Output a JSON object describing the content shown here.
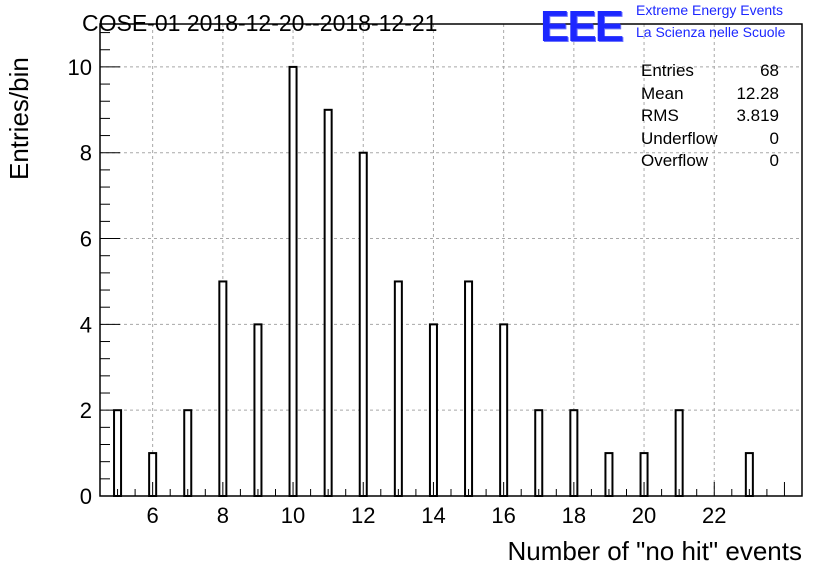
{
  "header": {
    "title": "COSE-01 2018-12-20--2018-12-21",
    "logo_mark": "EEE",
    "logo_line1": "Extreme Energy Events",
    "logo_line2": "La Scienza nelle Scuole"
  },
  "stats": [
    {
      "label": "Entries",
      "value": "68"
    },
    {
      "label": "Mean",
      "value": "12.28"
    },
    {
      "label": "RMS",
      "value": "3.819"
    },
    {
      "label": "Underflow",
      "value": "0"
    },
    {
      "label": "Overflow",
      "value": "0"
    }
  ],
  "chart_data": {
    "type": "bar",
    "title": "COSE-01 2018-12-20--2018-12-21",
    "xlabel": "Number of \"no hit\" events",
    "ylabel": "Entries/bin",
    "xlim": [
      4.5,
      24.5
    ],
    "ylim": [
      0,
      11
    ],
    "grid": true,
    "legend": "none",
    "bar_width": 0.2,
    "x": [
      5,
      6,
      7,
      8,
      9,
      10,
      11,
      12,
      13,
      14,
      15,
      16,
      17,
      18,
      19,
      20,
      21,
      23
    ],
    "values": [
      2,
      1,
      2,
      5,
      4,
      10,
      9,
      8,
      5,
      4,
      5,
      4,
      2,
      2,
      1,
      1,
      2,
      1
    ],
    "xticks": [
      6,
      8,
      10,
      12,
      14,
      16,
      18,
      20,
      22
    ],
    "yticks": [
      0,
      2,
      4,
      6,
      8,
      10
    ]
  }
}
